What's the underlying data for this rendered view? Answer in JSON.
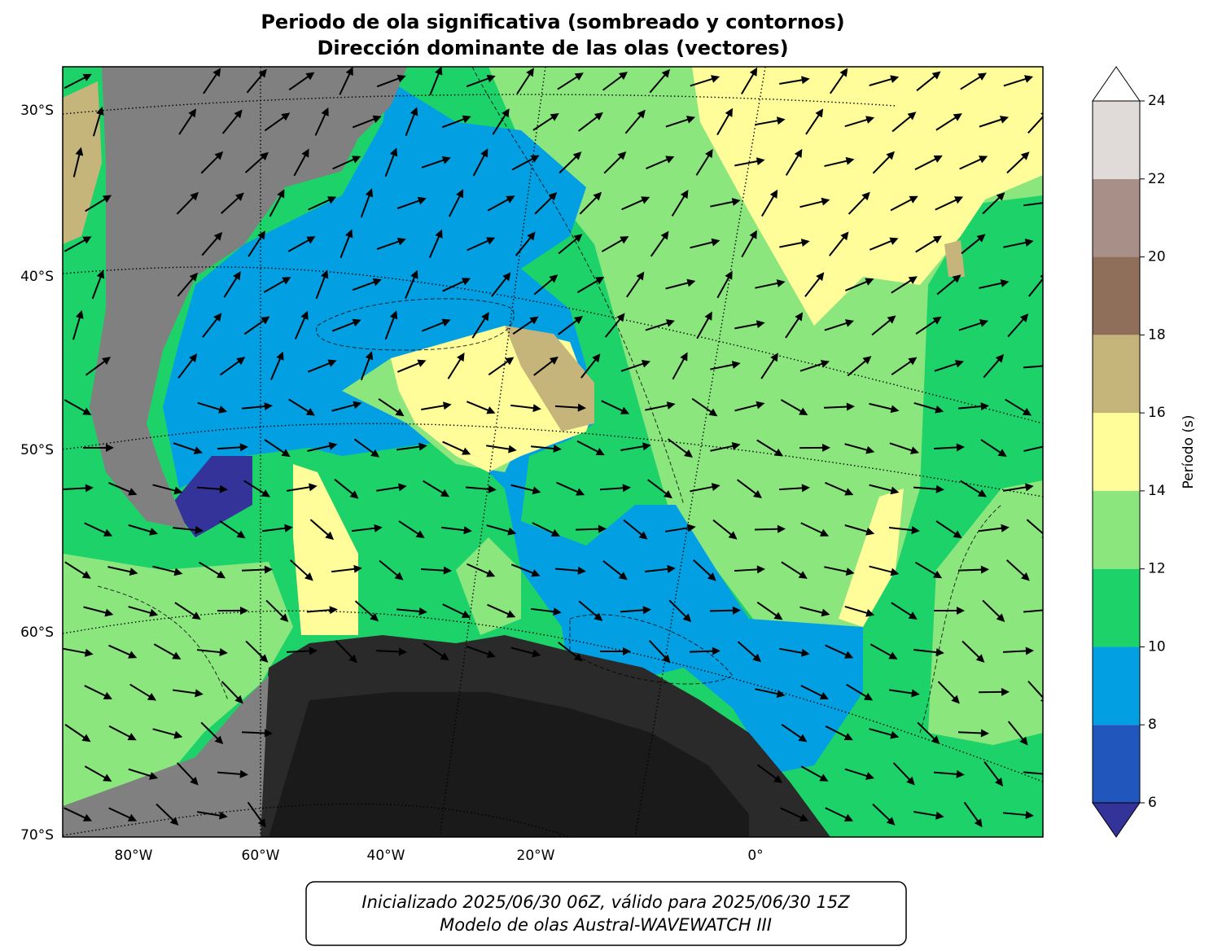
{
  "title": [
    "Periodo de ola significativa (sombreado y contornos)",
    "Dirección dominante de las olas (vectores)"
  ],
  "map": {
    "lat_labels": [
      "30°S",
      "40°S",
      "50°S",
      "60°S",
      "70°S"
    ],
    "lon_labels": [
      "80°W",
      "60°W",
      "40°W",
      "20°W",
      "0°"
    ]
  },
  "colorbar": {
    "label": "Período (s)",
    "lim": [
      6,
      24
    ],
    "ticks": [
      6,
      8,
      10,
      12,
      14,
      16,
      18,
      20,
      22,
      24
    ],
    "colors": [
      "#2156bd",
      "#039fe3",
      "#1ed26a",
      "#8ce67e",
      "#fffd9a",
      "#c6b57a",
      "#8f6e5a",
      "#a89088",
      "#e0dbd9"
    ],
    "under_color": "#333399",
    "over_color": "#ffffff"
  },
  "footer": [
    "Inicializado 2025/06/30 06Z, válido para 2025/06/30 15Z",
    "Modelo de olas Austral-WAVEWATCH III"
  ]
}
